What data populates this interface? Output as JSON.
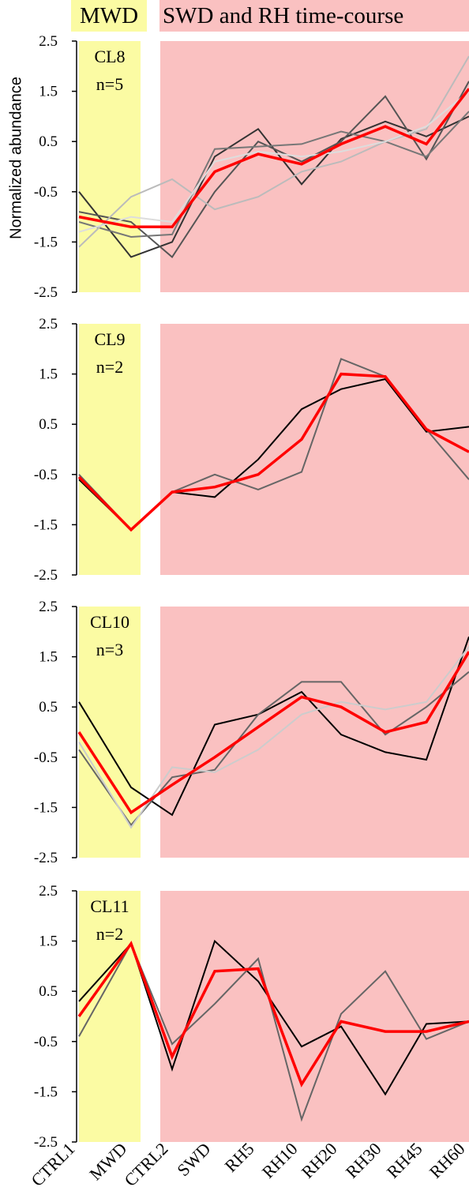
{
  "header": {
    "mwd_label": "MWD",
    "swd_label": "SWD and RH time-course"
  },
  "colors": {
    "mwd_region": "#fbfba3",
    "swd_region": "#fac1c1",
    "mean_line": "#ff0000",
    "gene_lines": [
      "#000000",
      "#666666",
      "#cccccc"
    ]
  },
  "chart_data": [
    {
      "type": "line",
      "title": "CL8",
      "subtitle": "n=5",
      "ylabel": "Normalized abundance",
      "ylim": [
        -2.5,
        2.5
      ],
      "yticks": [
        "2.5",
        "1.5",
        "0.5",
        "-0.5",
        "-1.5",
        "-2.5"
      ],
      "x": [
        "CTRL1",
        "MWD",
        "CTRL2",
        "SWD",
        "RH5",
        "RH10",
        "RH20",
        "RH30",
        "RH45",
        "RH60"
      ],
      "mean": [
        -1.0,
        -1.2,
        -1.2,
        -0.1,
        0.25,
        0.05,
        0.45,
        0.8,
        0.45,
        1.55
      ],
      "series": [
        {
          "color": "#333333",
          "values": [
            -0.5,
            -1.8,
            -1.5,
            0.2,
            0.75,
            -0.35,
            0.55,
            0.9,
            0.6,
            1.0
          ]
        },
        {
          "color": "#555555",
          "values": [
            -0.9,
            -1.1,
            -1.8,
            -0.5,
            0.5,
            0.1,
            0.5,
            1.4,
            0.15,
            1.7
          ]
        },
        {
          "color": "#777777",
          "values": [
            -1.1,
            -1.4,
            -1.35,
            0.35,
            0.4,
            0.45,
            0.7,
            0.5,
            0.2,
            1.1
          ]
        },
        {
          "color": "#bbbbbb",
          "values": [
            -1.6,
            -0.6,
            -0.25,
            -0.85,
            -0.6,
            -0.1,
            0.1,
            0.5,
            0.75,
            2.2
          ]
        },
        {
          "color": "#dddddd",
          "values": [
            -1.3,
            -1.0,
            -1.1,
            0.1,
            0.3,
            0.2,
            0.3,
            0.5,
            0.8,
            1.5
          ]
        }
      ]
    },
    {
      "type": "line",
      "title": "CL9",
      "subtitle": "n=2",
      "ylim": [
        -2.5,
        2.5
      ],
      "yticks": [
        "2.5",
        "1.5",
        "0.5",
        "-0.5",
        "-1.5",
        "-2.5"
      ],
      "x": [
        "CTRL1",
        "MWD",
        "CTRL2",
        "SWD",
        "RH5",
        "RH10",
        "RH20",
        "RH30",
        "RH45",
        "RH60"
      ],
      "mean": [
        -0.55,
        -1.6,
        -0.85,
        -0.75,
        -0.5,
        0.2,
        1.5,
        1.45,
        0.4,
        -0.05
      ],
      "series": [
        {
          "color": "#000000",
          "values": [
            -0.6,
            -1.6,
            -0.85,
            -0.95,
            -0.2,
            0.8,
            1.2,
            1.4,
            0.35,
            0.45
          ]
        },
        {
          "color": "#666666",
          "values": [
            -0.5,
            -1.6,
            -0.85,
            -0.5,
            -0.8,
            -0.45,
            1.8,
            1.45,
            0.4,
            -0.6
          ]
        }
      ]
    },
    {
      "type": "line",
      "title": "CL10",
      "subtitle": "n=3",
      "ylim": [
        -2.5,
        2.5
      ],
      "yticks": [
        "2.5",
        "1.5",
        "0.5",
        "-0.5",
        "-1.5",
        "-2.5"
      ],
      "x": [
        "CTRL1",
        "MWD",
        "CTRL2",
        "SWD",
        "RH5",
        "RH10",
        "RH20",
        "RH30",
        "RH45",
        "RH60"
      ],
      "mean": [
        0.0,
        -1.6,
        -1.05,
        -0.5,
        0.1,
        0.7,
        0.5,
        0.0,
        0.2,
        1.6
      ],
      "series": [
        {
          "color": "#000000",
          "values": [
            0.6,
            -1.1,
            -1.65,
            0.15,
            0.35,
            0.8,
            -0.05,
            -0.4,
            -0.55,
            1.9
          ]
        },
        {
          "color": "#666666",
          "values": [
            -0.35,
            -1.85,
            -0.9,
            -0.75,
            0.35,
            1.0,
            1.0,
            -0.05,
            0.5,
            1.2
          ]
        },
        {
          "color": "#cccccc",
          "values": [
            -0.2,
            -1.9,
            -0.7,
            -0.8,
            -0.35,
            0.35,
            0.6,
            0.45,
            0.6,
            1.7
          ]
        }
      ]
    },
    {
      "type": "line",
      "title": "CL11",
      "subtitle": "n=2",
      "ylim": [
        -2.5,
        2.5
      ],
      "yticks": [
        "2.5",
        "1.5",
        "0.5",
        "-0.5",
        "-1.5",
        "-2.5"
      ],
      "x": [
        "CTRL1",
        "MWD",
        "CTRL2",
        "SWD",
        "RH5",
        "RH10",
        "RH20",
        "RH30",
        "RH45",
        "RH60"
      ],
      "mean": [
        0.0,
        1.45,
        -0.8,
        0.9,
        0.95,
        -1.35,
        -0.1,
        -0.3,
        -0.3,
        -0.1
      ],
      "series": [
        {
          "color": "#000000",
          "values": [
            0.3,
            1.45,
            -1.05,
            1.5,
            0.7,
            -0.6,
            -0.2,
            -1.55,
            -0.15,
            -0.1
          ]
        },
        {
          "color": "#666666",
          "values": [
            -0.4,
            1.45,
            -0.55,
            0.25,
            1.15,
            -2.05,
            0.05,
            0.9,
            -0.45,
            -0.1
          ]
        }
      ]
    }
  ]
}
